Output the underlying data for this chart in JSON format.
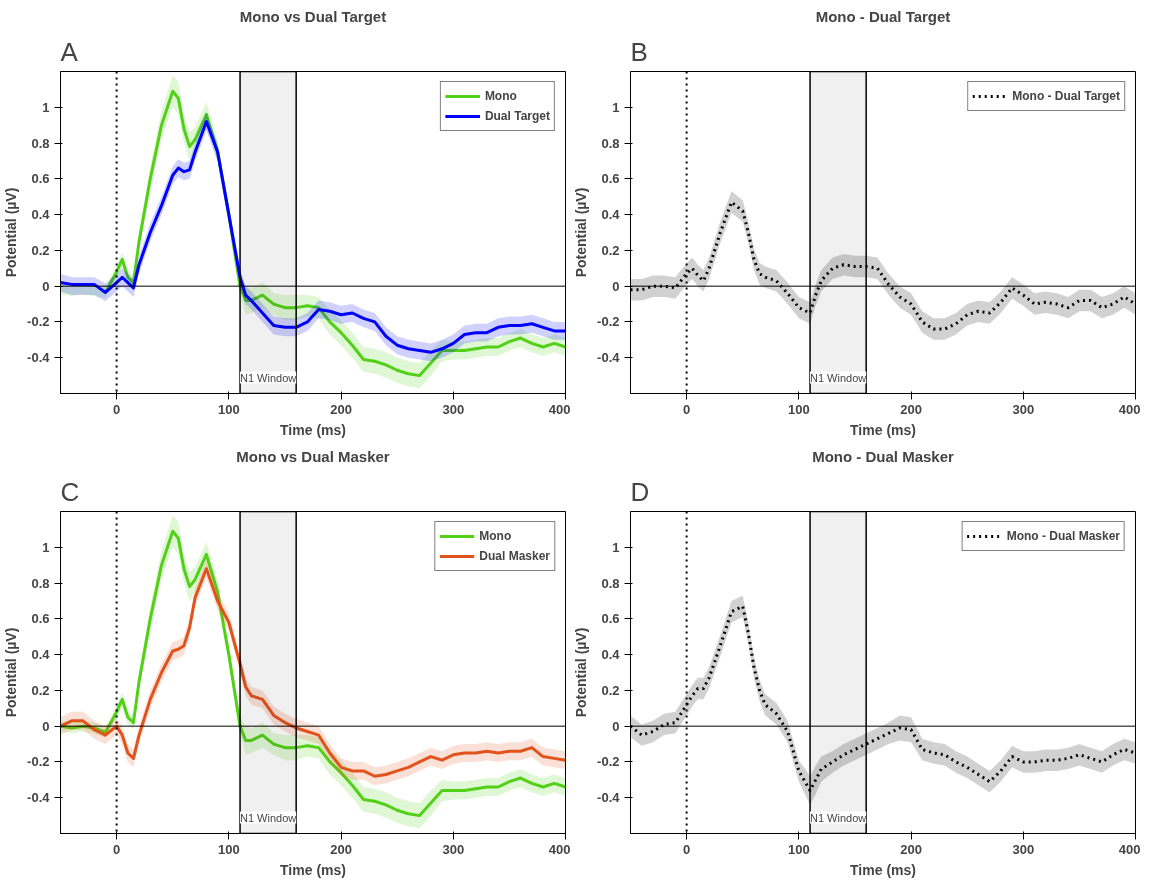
{
  "chart_data": [
    {
      "type": "line",
      "title": "Mono vs Dual Target",
      "xlabel": "Time (ms)",
      "ylabel": "Potential (µV)",
      "annotations": [
        "A"
      ],
      "legend": "top right",
      "grid": false,
      "line_style": "solid",
      "x": [
        -50,
        -40,
        -30,
        -20,
        -10,
        0,
        5,
        10,
        15,
        20,
        30,
        40,
        50,
        55,
        60,
        65,
        70,
        80,
        90,
        100,
        110,
        115,
        120,
        130,
        140,
        150,
        160,
        170,
        180,
        190,
        200,
        210,
        220,
        230,
        240,
        250,
        260,
        270,
        280,
        290,
        300,
        310,
        320,
        330,
        340,
        350,
        360,
        370,
        380,
        390,
        400
      ],
      "xlim": [
        -50,
        400
      ],
      "xticks": [
        0,
        100,
        200,
        300,
        400
      ],
      "ylim": [
        -0.6,
        1.2
      ],
      "yticks": [
        -0.4,
        -0.2,
        0,
        0.2,
        0.4,
        0.6,
        0.8,
        1
      ],
      "ref_lines": [
        {
          "axis": "x",
          "value": 0,
          "line_style": "dotted"
        },
        {
          "axis": "y",
          "value": 0
        }
      ],
      "bands": [
        {
          "axis": "x",
          "from": 110,
          "to": 160,
          "label": "N1 Window"
        }
      ],
      "series": [
        {
          "name": "Mono",
          "color": "#52d017",
          "values": [
            null,
            null,
            null,
            null,
            -0.035,
            0.08,
            0.15,
            0.05,
            0.02,
            0.25,
            0.6,
            0.9,
            1.09,
            1.05,
            0.88,
            0.78,
            0.82,
            0.96,
            0.75,
            0.4,
            0.0,
            -0.08,
            -0.08,
            -0.05,
            -0.1,
            -0.12,
            -0.12,
            -0.11,
            -0.12,
            -0.2,
            -0.26,
            -0.33,
            -0.41,
            -0.42,
            -0.44,
            -0.47,
            -0.49,
            -0.5,
            -0.43,
            -0.36,
            -0.36,
            -0.36,
            -0.35,
            -0.34,
            -0.34,
            -0.31,
            -0.29,
            -0.32,
            -0.34,
            -0.32,
            -0.34
          ],
          "lower": [
            -0.045,
            -0.055,
            -0.045,
            -0.055,
            -0.065,
            0.04,
            0.11,
            0.01,
            -0.02,
            0.2,
            0.53,
            0.82,
            1.0,
            0.96,
            0.8,
            0.7,
            0.75,
            0.89,
            0.69,
            0.35,
            -0.05,
            -0.16,
            -0.15,
            -0.12,
            -0.16,
            -0.19,
            -0.19,
            -0.17,
            -0.18,
            -0.27,
            -0.33,
            -0.4,
            -0.48,
            -0.49,
            -0.51,
            -0.54,
            -0.56,
            -0.57,
            -0.5,
            -0.42,
            -0.41,
            -0.41,
            -0.4,
            -0.39,
            -0.39,
            -0.36,
            -0.34,
            -0.37,
            -0.39,
            -0.37,
            -0.39
          ],
          "upper": [
            0.015,
            0.005,
            0.015,
            0.005,
            -0.005,
            0.12,
            0.19,
            0.09,
            0.06,
            0.3,
            0.67,
            0.98,
            1.18,
            1.14,
            0.96,
            0.86,
            0.89,
            1.03,
            0.81,
            0.45,
            0.05,
            0.0,
            -0.01,
            0.02,
            -0.04,
            -0.05,
            -0.05,
            -0.05,
            -0.06,
            -0.13,
            -0.19,
            -0.26,
            -0.34,
            -0.35,
            -0.37,
            -0.4,
            -0.42,
            -0.43,
            -0.36,
            -0.3,
            -0.31,
            -0.31,
            -0.3,
            -0.29,
            -0.29,
            -0.26,
            -0.24,
            -0.27,
            -0.29,
            -0.27,
            -0.29
          ]
        },
        {
          "name": "Dual Target",
          "color": "#0000ff",
          "values": [
            0.02,
            0.01,
            0.01,
            0.01,
            -0.035,
            0.02,
            0.05,
            0.02,
            -0.01,
            0.12,
            0.3,
            0.45,
            0.62,
            0.66,
            0.64,
            0.65,
            0.75,
            0.92,
            0.75,
            0.4,
            0.05,
            -0.05,
            -0.08,
            -0.15,
            -0.22,
            -0.23,
            -0.23,
            -0.2,
            -0.13,
            -0.14,
            -0.16,
            -0.15,
            -0.18,
            -0.2,
            -0.28,
            -0.33,
            -0.35,
            -0.36,
            -0.37,
            -0.35,
            -0.32,
            -0.27,
            -0.26,
            -0.26,
            -0.23,
            -0.22,
            -0.22,
            -0.21,
            -0.23,
            -0.25,
            -0.25
          ],
          "lower": [
            -0.03,
            -0.05,
            -0.05,
            -0.05,
            -0.085,
            -0.03,
            0.0,
            -0.03,
            -0.06,
            0.07,
            0.25,
            0.4,
            0.57,
            0.61,
            0.59,
            0.6,
            0.7,
            0.87,
            0.7,
            0.35,
            0.0,
            -0.1,
            -0.13,
            -0.2,
            -0.27,
            -0.28,
            -0.28,
            -0.25,
            -0.18,
            -0.19,
            -0.21,
            -0.2,
            -0.23,
            -0.25,
            -0.33,
            -0.38,
            -0.4,
            -0.41,
            -0.42,
            -0.4,
            -0.37,
            -0.32,
            -0.31,
            -0.31,
            -0.28,
            -0.27,
            -0.27,
            -0.26,
            -0.28,
            -0.3,
            -0.3
          ],
          "upper": [
            0.07,
            0.05,
            0.05,
            0.05,
            0.015,
            0.07,
            0.1,
            0.07,
            0.04,
            0.17,
            0.35,
            0.5,
            0.67,
            0.71,
            0.69,
            0.7,
            0.8,
            0.97,
            0.8,
            0.45,
            0.1,
            0.0,
            -0.03,
            -0.1,
            -0.17,
            -0.18,
            -0.18,
            -0.15,
            -0.08,
            -0.09,
            -0.11,
            -0.1,
            -0.13,
            -0.15,
            -0.23,
            -0.28,
            -0.3,
            -0.31,
            -0.32,
            -0.3,
            -0.27,
            -0.22,
            -0.21,
            -0.21,
            -0.18,
            -0.17,
            -0.17,
            -0.16,
            -0.18,
            -0.2,
            -0.2
          ]
        }
      ]
    },
    {
      "type": "line",
      "title": "Mono - Dual Target",
      "xlabel": "Time (ms)",
      "ylabel": "Potential (µV)",
      "annotations": [
        "B"
      ],
      "legend": "top right",
      "grid": false,
      "line_style": "dotted",
      "x": [
        -50,
        -40,
        -30,
        -20,
        -10,
        0,
        5,
        10,
        15,
        20,
        30,
        40,
        50,
        55,
        60,
        65,
        70,
        80,
        90,
        100,
        110,
        115,
        120,
        130,
        140,
        150,
        160,
        170,
        180,
        190,
        200,
        210,
        220,
        230,
        240,
        250,
        260,
        270,
        280,
        290,
        300,
        310,
        320,
        330,
        340,
        350,
        360,
        370,
        380,
        390,
        400
      ],
      "xlim": [
        -50,
        400
      ],
      "xticks": [
        0,
        100,
        200,
        300,
        400
      ],
      "ylim": [
        -0.6,
        1.2
      ],
      "yticks": [
        -0.4,
        -0.2,
        0,
        0.2,
        0.4,
        0.6,
        0.8,
        1
      ],
      "ref_lines": [
        {
          "axis": "x",
          "value": 0,
          "line_style": "dotted"
        },
        {
          "axis": "y",
          "value": 0
        }
      ],
      "bands": [
        {
          "axis": "x",
          "from": 110,
          "to": 160,
          "label": "N1 Window"
        }
      ],
      "series": [
        {
          "name": "Mono - Dual Target",
          "color": "#000000",
          "values": [
            -0.02,
            -0.02,
            0.0,
            0.0,
            -0.01,
            0.07,
            0.1,
            0.06,
            0.03,
            0.1,
            0.3,
            0.47,
            0.42,
            0.3,
            0.15,
            0.07,
            0.05,
            0.03,
            -0.04,
            -0.12,
            -0.15,
            -0.05,
            0.03,
            0.1,
            0.12,
            0.11,
            0.11,
            0.1,
            0.01,
            -0.06,
            -0.1,
            -0.2,
            -0.24,
            -0.24,
            -0.21,
            -0.16,
            -0.14,
            -0.15,
            -0.09,
            -0.01,
            -0.05,
            -0.1,
            -0.09,
            -0.1,
            -0.12,
            -0.08,
            -0.08,
            -0.12,
            -0.1,
            -0.06,
            -0.1
          ],
          "lower": [
            -0.08,
            -0.08,
            -0.06,
            -0.06,
            -0.07,
            0.01,
            0.04,
            0.0,
            -0.03,
            0.04,
            0.24,
            0.41,
            0.36,
            0.24,
            0.09,
            0.01,
            -0.01,
            -0.03,
            -0.1,
            -0.18,
            -0.21,
            -0.11,
            -0.03,
            0.04,
            0.06,
            0.05,
            0.05,
            0.04,
            -0.05,
            -0.12,
            -0.16,
            -0.26,
            -0.3,
            -0.3,
            -0.27,
            -0.22,
            -0.2,
            -0.21,
            -0.15,
            -0.07,
            -0.11,
            -0.16,
            -0.15,
            -0.16,
            -0.18,
            -0.14,
            -0.14,
            -0.18,
            -0.16,
            -0.12,
            -0.16
          ],
          "upper": [
            0.04,
            0.04,
            0.06,
            0.06,
            0.05,
            0.13,
            0.16,
            0.12,
            0.09,
            0.16,
            0.36,
            0.53,
            0.48,
            0.36,
            0.21,
            0.13,
            0.11,
            0.09,
            0.02,
            -0.06,
            -0.09,
            0.01,
            0.09,
            0.16,
            0.18,
            0.17,
            0.17,
            0.16,
            0.07,
            0.0,
            -0.04,
            -0.14,
            -0.18,
            -0.18,
            -0.15,
            -0.1,
            -0.08,
            -0.09,
            -0.03,
            0.05,
            0.01,
            -0.04,
            -0.03,
            -0.04,
            -0.06,
            -0.02,
            -0.02,
            -0.06,
            -0.04,
            0.0,
            -0.04
          ]
        }
      ]
    },
    {
      "type": "line",
      "title": "Mono vs Dual Masker",
      "xlabel": "Time (ms)",
      "ylabel": "Potential (µV)",
      "annotations": [
        "C"
      ],
      "legend": "top right",
      "grid": false,
      "line_style": "solid",
      "x": [
        -50,
        -40,
        -30,
        -20,
        -10,
        0,
        5,
        10,
        15,
        20,
        30,
        40,
        50,
        55,
        60,
        65,
        70,
        80,
        90,
        100,
        110,
        115,
        120,
        130,
        140,
        150,
        160,
        170,
        180,
        190,
        200,
        210,
        220,
        230,
        240,
        250,
        260,
        270,
        280,
        290,
        300,
        310,
        320,
        330,
        340,
        350,
        360,
        370,
        380,
        390,
        400
      ],
      "xlim": [
        -50,
        400
      ],
      "xticks": [
        0,
        100,
        200,
        300,
        400
      ],
      "ylim": [
        -0.6,
        1.2
      ],
      "yticks": [
        -0.4,
        -0.2,
        0,
        0.2,
        0.4,
        0.6,
        0.8,
        1
      ],
      "ref_lines": [
        {
          "axis": "x",
          "value": 0,
          "line_style": "dotted"
        },
        {
          "axis": "y",
          "value": 0
        }
      ],
      "bands": [
        {
          "axis": "x",
          "from": 110,
          "to": 160,
          "label": "N1 Window"
        }
      ],
      "series": [
        {
          "name": "Mono",
          "color": "#52d017",
          "values": [
            0,
            -0.01,
            0,
            -0.01,
            -0.035,
            0.08,
            0.15,
            0.05,
            0.02,
            0.25,
            0.6,
            0.9,
            1.09,
            1.05,
            0.88,
            0.78,
            0.82,
            0.96,
            0.75,
            0.4,
            0.0,
            -0.08,
            -0.08,
            -0.05,
            -0.1,
            -0.12,
            -0.12,
            -0.11,
            -0.12,
            -0.2,
            -0.26,
            -0.33,
            -0.41,
            -0.42,
            -0.44,
            -0.47,
            -0.49,
            -0.5,
            -0.43,
            -0.36,
            -0.36,
            -0.36,
            -0.35,
            -0.34,
            -0.34,
            -0.31,
            -0.29,
            -0.32,
            -0.34,
            -0.32,
            -0.34
          ],
          "lower": [
            -0.03,
            -0.04,
            -0.03,
            -0.04,
            -0.065,
            0.04,
            0.11,
            0.01,
            -0.02,
            0.2,
            0.53,
            0.82,
            1.0,
            0.96,
            0.8,
            0.7,
            0.75,
            0.89,
            0.69,
            0.35,
            -0.05,
            -0.16,
            -0.15,
            -0.12,
            -0.16,
            -0.19,
            -0.19,
            -0.17,
            -0.18,
            -0.27,
            -0.33,
            -0.4,
            -0.48,
            -0.49,
            -0.51,
            -0.54,
            -0.56,
            -0.57,
            -0.5,
            -0.42,
            -0.41,
            -0.41,
            -0.4,
            -0.39,
            -0.39,
            -0.36,
            -0.34,
            -0.37,
            -0.39,
            -0.37,
            -0.39
          ],
          "upper": [
            0.03,
            0.02,
            0.03,
            0.02,
            -0.005,
            0.12,
            0.19,
            0.09,
            0.06,
            0.3,
            0.67,
            0.98,
            1.18,
            1.14,
            0.96,
            0.86,
            0.89,
            1.03,
            0.81,
            0.45,
            0.05,
            0.0,
            -0.01,
            0.02,
            -0.04,
            -0.05,
            -0.05,
            -0.05,
            -0.06,
            -0.13,
            -0.19,
            -0.26,
            -0.34,
            -0.35,
            -0.37,
            -0.4,
            -0.42,
            -0.43,
            -0.36,
            -0.3,
            -0.31,
            -0.31,
            -0.3,
            -0.29,
            -0.29,
            -0.26,
            -0.24,
            -0.27,
            -0.29,
            -0.27,
            -0.29
          ]
        },
        {
          "name": "Dual Masker",
          "color": "#e2531c",
          "values": [
            0.0,
            0.03,
            0.03,
            -0.02,
            -0.05,
            0.0,
            -0.05,
            -0.15,
            -0.18,
            -0.05,
            0.15,
            0.3,
            0.42,
            0.43,
            0.45,
            0.55,
            0.72,
            0.88,
            0.7,
            0.58,
            0.35,
            0.22,
            0.17,
            0.15,
            0.06,
            0.02,
            -0.01,
            -0.03,
            -0.05,
            -0.15,
            -0.23,
            -0.25,
            -0.25,
            -0.28,
            -0.27,
            -0.25,
            -0.23,
            -0.2,
            -0.17,
            -0.19,
            -0.16,
            -0.15,
            -0.15,
            -0.14,
            -0.15,
            -0.14,
            -0.14,
            -0.12,
            -0.17,
            -0.18,
            -0.19
          ],
          "lower": [
            -0.05,
            -0.02,
            -0.02,
            -0.07,
            -0.1,
            -0.05,
            -0.1,
            -0.2,
            -0.23,
            -0.1,
            0.1,
            0.25,
            0.37,
            0.38,
            0.4,
            0.5,
            0.67,
            0.83,
            0.65,
            0.53,
            0.3,
            0.17,
            0.12,
            0.1,
            0.01,
            -0.03,
            -0.06,
            -0.08,
            -0.1,
            -0.2,
            -0.28,
            -0.3,
            -0.3,
            -0.33,
            -0.32,
            -0.3,
            -0.28,
            -0.25,
            -0.22,
            -0.24,
            -0.21,
            -0.2,
            -0.2,
            -0.19,
            -0.2,
            -0.19,
            -0.19,
            -0.17,
            -0.22,
            -0.23,
            -0.24
          ],
          "upper": [
            0.05,
            0.08,
            0.08,
            0.03,
            0.0,
            0.05,
            0.0,
            -0.1,
            -0.13,
            0.0,
            0.2,
            0.35,
            0.47,
            0.48,
            0.5,
            0.6,
            0.77,
            0.93,
            0.75,
            0.63,
            0.4,
            0.27,
            0.22,
            0.2,
            0.11,
            0.07,
            0.04,
            0.02,
            0.0,
            -0.1,
            -0.18,
            -0.2,
            -0.2,
            -0.23,
            -0.22,
            -0.2,
            -0.18,
            -0.15,
            -0.12,
            -0.14,
            -0.11,
            -0.1,
            -0.1,
            -0.09,
            -0.1,
            -0.09,
            -0.09,
            -0.07,
            -0.12,
            -0.13,
            -0.14
          ]
        }
      ]
    },
    {
      "type": "line",
      "title": "Mono - Dual Masker",
      "xlabel": "Time (ms)",
      "ylabel": "Potential (µV)",
      "annotations": [
        "D"
      ],
      "legend": "top right",
      "grid": false,
      "line_style": "dotted",
      "x": [
        -50,
        -40,
        -30,
        -20,
        -10,
        0,
        5,
        10,
        15,
        20,
        30,
        40,
        50,
        55,
        60,
        65,
        70,
        80,
        90,
        100,
        110,
        115,
        120,
        130,
        140,
        150,
        160,
        170,
        180,
        190,
        200,
        210,
        220,
        230,
        240,
        250,
        260,
        270,
        280,
        290,
        300,
        310,
        320,
        330,
        340,
        350,
        360,
        370,
        380,
        390,
        400
      ],
      "xlim": [
        -50,
        400
      ],
      "xticks": [
        0,
        100,
        200,
        300,
        400
      ],
      "ylim": [
        -0.6,
        1.2
      ],
      "yticks": [
        -0.4,
        -0.2,
        0,
        0.2,
        0.4,
        0.6,
        0.8,
        1
      ],
      "ref_lines": [
        {
          "axis": "x",
          "value": 0,
          "line_style": "dotted"
        },
        {
          "axis": "y",
          "value": 0
        }
      ],
      "bands": [
        {
          "axis": "x",
          "from": 110,
          "to": 160,
          "label": "N1 Window"
        }
      ],
      "series": [
        {
          "name": "Mono - Dual Masker",
          "color": "#000000",
          "values": [
            0.0,
            -0.05,
            -0.03,
            0.01,
            0.02,
            0.12,
            0.17,
            0.21,
            0.21,
            0.27,
            0.45,
            0.64,
            0.67,
            0.52,
            0.33,
            0.2,
            0.12,
            0.07,
            -0.03,
            -0.25,
            -0.36,
            -0.3,
            -0.24,
            -0.2,
            -0.16,
            -0.13,
            -0.1,
            -0.07,
            -0.04,
            -0.01,
            -0.02,
            -0.13,
            -0.15,
            -0.16,
            -0.2,
            -0.23,
            -0.27,
            -0.31,
            -0.25,
            -0.17,
            -0.2,
            -0.2,
            -0.19,
            -0.19,
            -0.18,
            -0.16,
            -0.18,
            -0.2,
            -0.16,
            -0.13,
            -0.15
          ],
          "lower": [
            -0.06,
            -0.11,
            -0.09,
            -0.05,
            -0.04,
            0.06,
            0.11,
            0.15,
            0.15,
            0.21,
            0.39,
            0.58,
            0.61,
            0.46,
            0.27,
            0.14,
            0.06,
            0.01,
            -0.09,
            -0.31,
            -0.44,
            -0.38,
            -0.31,
            -0.26,
            -0.22,
            -0.19,
            -0.16,
            -0.13,
            -0.1,
            -0.08,
            -0.09,
            -0.19,
            -0.21,
            -0.22,
            -0.26,
            -0.29,
            -0.33,
            -0.37,
            -0.31,
            -0.23,
            -0.26,
            -0.26,
            -0.25,
            -0.25,
            -0.24,
            -0.22,
            -0.24,
            -0.26,
            -0.22,
            -0.19,
            -0.21
          ],
          "upper": [
            0.06,
            0.01,
            0.03,
            0.07,
            0.08,
            0.18,
            0.23,
            0.27,
            0.27,
            0.33,
            0.51,
            0.7,
            0.73,
            0.58,
            0.39,
            0.26,
            0.18,
            0.13,
            0.03,
            -0.19,
            -0.28,
            -0.22,
            -0.17,
            -0.14,
            -0.1,
            -0.07,
            -0.04,
            -0.01,
            0.02,
            0.06,
            0.05,
            -0.07,
            -0.09,
            -0.1,
            -0.14,
            -0.17,
            -0.21,
            -0.25,
            -0.19,
            -0.11,
            -0.14,
            -0.14,
            -0.13,
            -0.13,
            -0.12,
            -0.1,
            -0.12,
            -0.14,
            -0.1,
            -0.07,
            -0.09
          ]
        }
      ]
    }
  ]
}
